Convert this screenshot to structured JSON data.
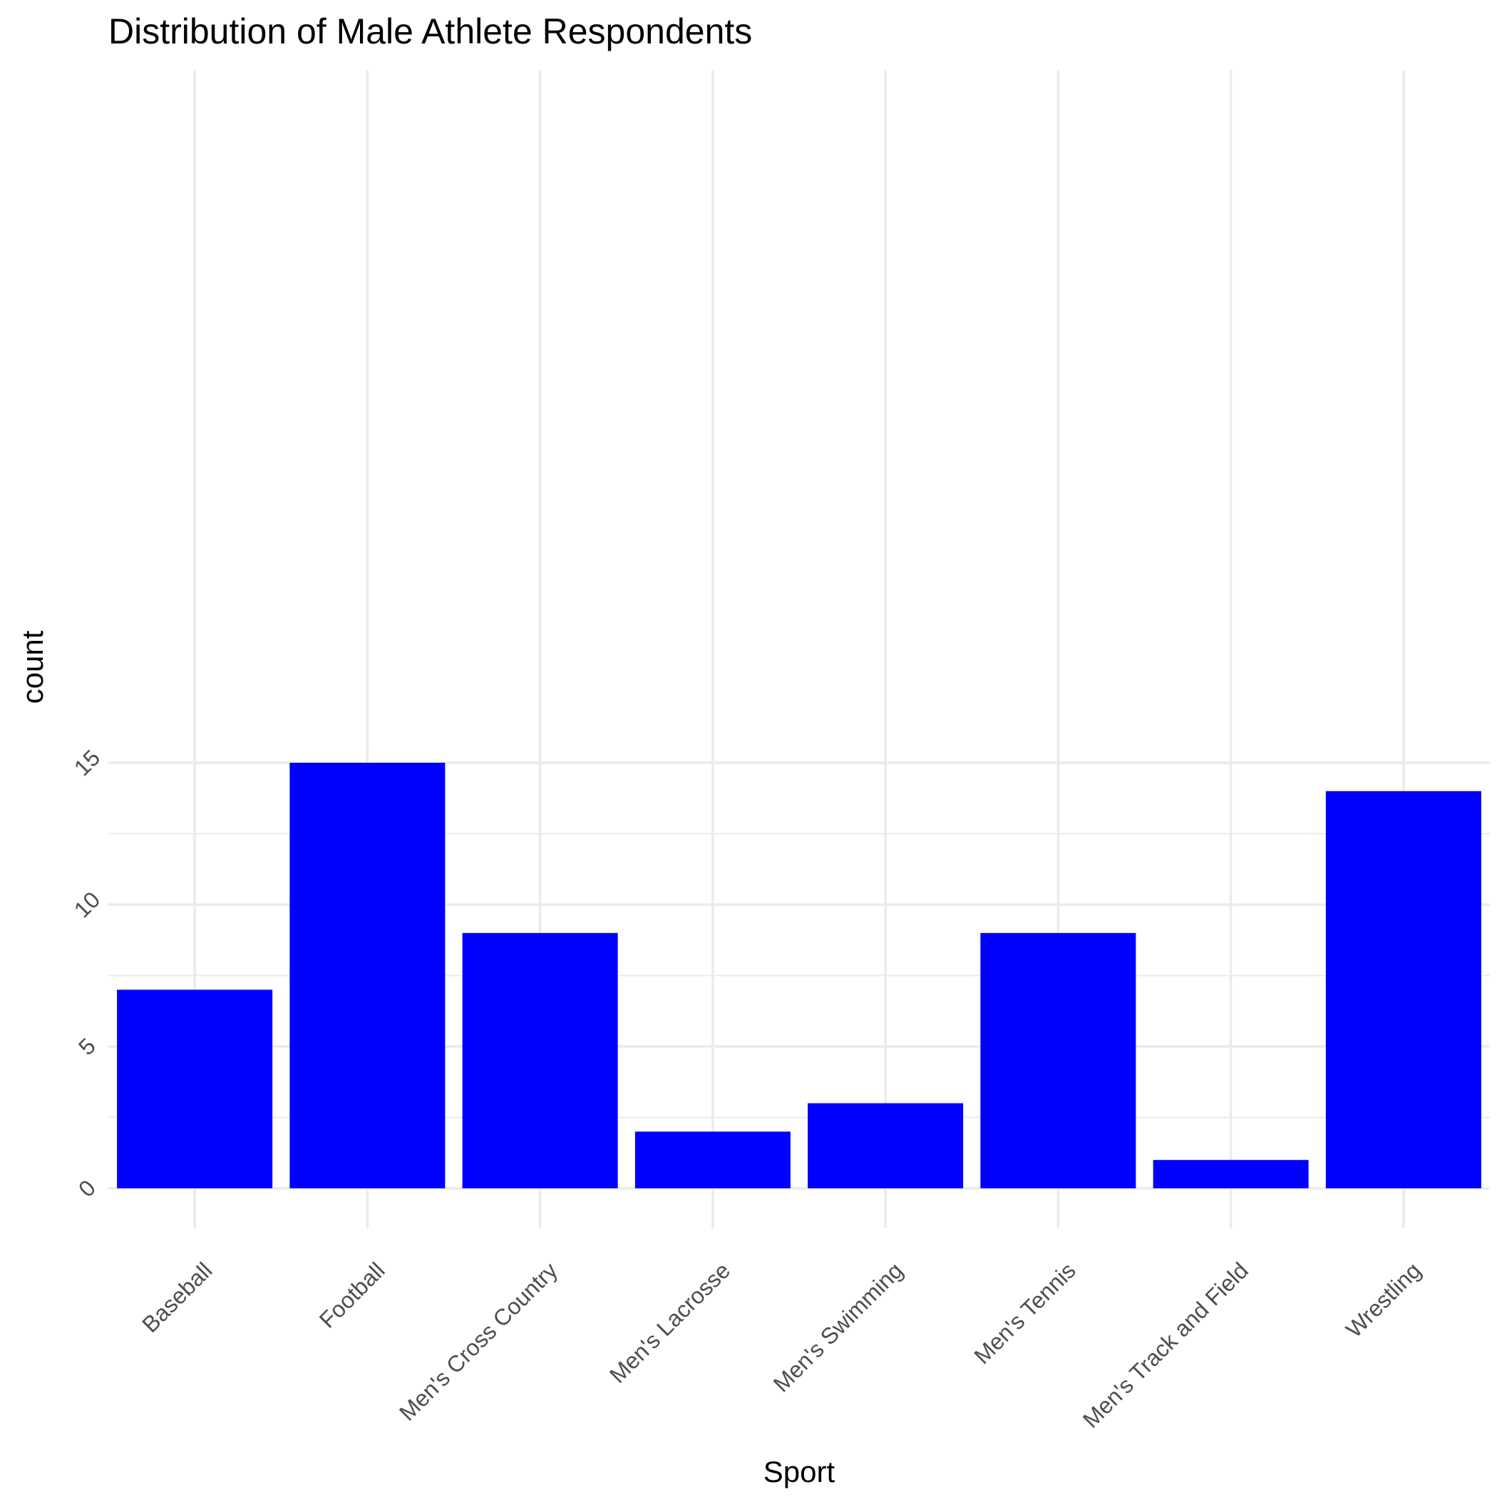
{
  "chart_data": {
    "type": "bar",
    "title": "Distribution of Male Athlete Respondents",
    "xlabel": "Sport",
    "ylabel": "count",
    "categories": [
      "Baseball",
      "Football",
      "Men's Cross Country",
      "Men's Lacrosse",
      "Men's Swimming",
      "Men's Tennis",
      "Men's Track and Field",
      "Wrestling"
    ],
    "values": [
      7,
      15,
      9,
      2,
      3,
      9,
      1,
      14
    ],
    "y_ticks": [
      0,
      5,
      10,
      15
    ],
    "ylim": [
      0,
      15.75
    ],
    "bar_color": "#0000ff",
    "grid": true,
    "legend": "none"
  }
}
